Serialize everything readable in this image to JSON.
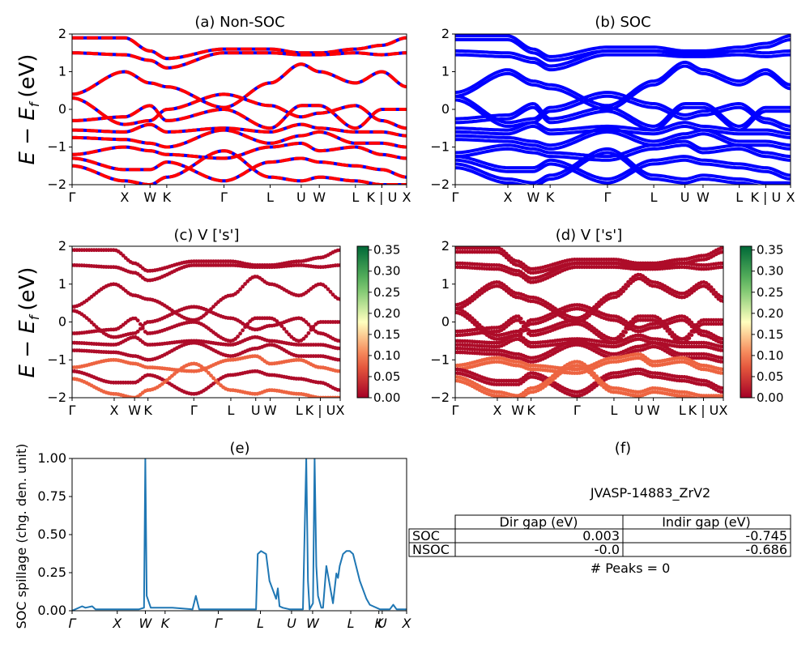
{
  "labels": {
    "energy_ylabel": "E − E",
    "energy_ylabel_sub": "f",
    "energy_ylabel_unit": "(eV)",
    "spillage_ylabel": "SOC spillage (chg. den. unit)"
  },
  "colors": {
    "nonsoc_a": "#ff0000",
    "nonsoc_b": "#0000ff",
    "soc": "#0000ff",
    "spillage": "#1f77b4",
    "colormap": "RdYlGn"
  },
  "chart_data": [
    {
      "panel": "a",
      "type": "line",
      "title": "(a) Non-SOC",
      "ylim": [
        -2,
        2
      ],
      "yticks": [
        "2",
        "1",
        "0",
        "−1",
        "−2"
      ],
      "xticks": [
        "Γ",
        "X",
        "W",
        "K",
        "Γ",
        "L",
        "U",
        "W",
        "L",
        "K | U",
        "X"
      ],
      "kpath_positions": [
        0,
        0.157,
        0.233,
        0.283,
        0.454,
        0.592,
        0.685,
        0.739,
        0.847,
        0.926,
        1.0
      ],
      "series": [
        {
          "values": [
            [
              0,
              1.9
            ],
            [
              0.157,
              1.9
            ],
            [
              0.233,
              1.55
            ],
            [
              0.283,
              1.35
            ],
            [
              0.454,
              1.6
            ],
            [
              0.592,
              1.6
            ],
            [
              0.685,
              1.5
            ],
            [
              0.739,
              1.5
            ],
            [
              0.847,
              1.6
            ],
            [
              0.926,
              1.7
            ],
            [
              1.0,
              1.9
            ]
          ]
        },
        {
          "values": [
            [
              0,
              1.5
            ],
            [
              0.157,
              1.45
            ],
            [
              0.233,
              1.3
            ],
            [
              0.283,
              1.1
            ],
            [
              0.454,
              1.5
            ],
            [
              0.592,
              1.5
            ],
            [
              0.685,
              1.45
            ],
            [
              0.739,
              1.45
            ],
            [
              0.847,
              1.5
            ],
            [
              0.926,
              1.45
            ],
            [
              1.0,
              1.5
            ]
          ]
        },
        {
          "values": [
            [
              0,
              0.4
            ],
            [
              0.157,
              1.0
            ],
            [
              0.233,
              0.7
            ],
            [
              0.283,
              0.6
            ],
            [
              0.454,
              0.05
            ],
            [
              0.592,
              0.7
            ],
            [
              0.685,
              1.2
            ],
            [
              0.739,
              1.0
            ],
            [
              0.847,
              0.7
            ],
            [
              0.926,
              1.0
            ],
            [
              1.0,
              0.6
            ]
          ]
        },
        {
          "values": [
            [
              0,
              0.3
            ],
            [
              0.157,
              -0.4
            ],
            [
              0.233,
              -0.3
            ],
            [
              0.283,
              0.0
            ],
            [
              0.454,
              0.4
            ],
            [
              0.592,
              0.1
            ],
            [
              0.685,
              -0.2
            ],
            [
              0.739,
              -0.1
            ],
            [
              0.847,
              0.1
            ],
            [
              0.926,
              -0.3
            ],
            [
              1.0,
              -0.5
            ]
          ]
        },
        {
          "values": [
            [
              0,
              -0.3
            ],
            [
              0.157,
              -0.2
            ],
            [
              0.233,
              0.1
            ],
            [
              0.283,
              -0.3
            ],
            [
              0.454,
              0.0
            ],
            [
              0.592,
              -0.5
            ],
            [
              0.685,
              0.1
            ],
            [
              0.739,
              0.1
            ],
            [
              0.847,
              -0.5
            ],
            [
              0.926,
              0.0
            ],
            [
              1.0,
              0.0
            ]
          ]
        },
        {
          "values": [
            [
              0,
              -0.55
            ],
            [
              0.157,
              -0.6
            ],
            [
              0.233,
              -0.4
            ],
            [
              0.283,
              -0.6
            ],
            [
              0.454,
              -0.5
            ],
            [
              0.592,
              -0.6
            ],
            [
              0.685,
              -0.4
            ],
            [
              0.739,
              -0.5
            ],
            [
              0.847,
              -0.6
            ],
            [
              0.926,
              -0.6
            ],
            [
              1.0,
              -0.7
            ]
          ]
        },
        {
          "values": [
            [
              0,
              -0.75
            ],
            [
              0.157,
              -0.8
            ],
            [
              0.233,
              -0.9
            ],
            [
              0.283,
              -1.0
            ],
            [
              0.454,
              -0.55
            ],
            [
              0.592,
              -0.9
            ],
            [
              0.685,
              -0.7
            ],
            [
              0.739,
              -0.6
            ],
            [
              0.847,
              -0.9
            ],
            [
              0.926,
              -0.9
            ],
            [
              1.0,
              -1.0
            ]
          ]
        },
        {
          "values": [
            [
              0,
              -1.2
            ],
            [
              0.157,
              -1.0
            ],
            [
              0.233,
              -1.1
            ],
            [
              0.283,
              -1.2
            ],
            [
              0.454,
              -1.3
            ],
            [
              0.592,
              -1.0
            ],
            [
              0.685,
              -0.9
            ],
            [
              0.739,
              -1.1
            ],
            [
              0.847,
              -1.0
            ],
            [
              0.926,
              -1.2
            ],
            [
              1.0,
              -1.3
            ]
          ]
        },
        {
          "values": [
            [
              0,
              -1.3
            ],
            [
              0.157,
              -1.6
            ],
            [
              0.233,
              -1.6
            ],
            [
              0.283,
              -1.4
            ],
            [
              0.454,
              -1.9
            ],
            [
              0.592,
              -1.4
            ],
            [
              0.685,
              -1.3
            ],
            [
              0.739,
              -1.4
            ],
            [
              0.847,
              -1.5
            ],
            [
              0.926,
              -1.6
            ],
            [
              1.0,
              -1.8
            ]
          ]
        },
        {
          "values": [
            [
              0,
              -1.5
            ],
            [
              0.157,
              -1.9
            ],
            [
              0.233,
              -2.0
            ],
            [
              0.283,
              -1.8
            ],
            [
              0.454,
              -1.1
            ],
            [
              0.592,
              -1.8
            ],
            [
              0.685,
              -1.9
            ],
            [
              0.739,
              -1.8
            ],
            [
              0.847,
              -1.9
            ],
            [
              0.926,
              -2.0
            ],
            [
              1.0,
              -2.0
            ]
          ]
        }
      ]
    },
    {
      "panel": "b",
      "type": "line",
      "title": "(b) SOC",
      "ylim": [
        -2,
        2
      ],
      "yticks": [
        "2",
        "1",
        "0",
        "−1",
        "−2"
      ],
      "xticks": [
        "Γ",
        "X",
        "W",
        "K",
        "Γ",
        "L",
        "U",
        "W",
        "L",
        "K | U",
        "X"
      ],
      "kpath_positions": [
        0,
        0.157,
        0.233,
        0.283,
        0.454,
        0.592,
        0.685,
        0.739,
        0.847,
        0.926,
        1.0
      ],
      "series": []
    },
    {
      "panel": "c",
      "type": "scatter",
      "title": "(c)  V ['s']",
      "ylim": [
        -2,
        2
      ],
      "yticks": [
        "2",
        "1",
        "0",
        "−1",
        "−2"
      ],
      "xticks": [
        "Γ",
        "X",
        "W",
        "K",
        "Γ",
        "L",
        "U",
        "W",
        "L",
        "K | U",
        "X"
      ],
      "kpath_positions": [
        0,
        0.157,
        0.233,
        0.283,
        0.454,
        0.592,
        0.685,
        0.739,
        0.847,
        0.926,
        1.0
      ],
      "colorbar": {
        "range": [
          0.0,
          0.35
        ],
        "ticks": [
          "0.35",
          "0.30",
          "0.25",
          "0.20",
          "0.15",
          "0.10",
          "0.05",
          "0.00"
        ]
      },
      "highlight_projection": 0.08,
      "base_projection": 0.01
    },
    {
      "panel": "d",
      "type": "scatter",
      "title": "(d) V ['s']",
      "ylim": [
        -2,
        2
      ],
      "yticks": [
        "2",
        "1",
        "0",
        "−1",
        "−2"
      ],
      "xticks": [
        "Γ",
        "X",
        "W",
        "K",
        "Γ",
        "L",
        "U",
        "W",
        "L",
        "K | U",
        "X"
      ],
      "kpath_positions": [
        0,
        0.157,
        0.233,
        0.283,
        0.454,
        0.592,
        0.685,
        0.739,
        0.847,
        0.926,
        1.0
      ],
      "colorbar": {
        "range": [
          0.0,
          0.35
        ],
        "ticks": [
          "0.35",
          "0.30",
          "0.25",
          "0.20",
          "0.15",
          "0.10",
          "0.05",
          "0.00"
        ]
      },
      "highlight_projection": 0.08,
      "base_projection": 0.01
    },
    {
      "panel": "e",
      "type": "line",
      "title": "(e)",
      "ylabel": "SOC spillage (chg. den. unit)",
      "ylim": [
        0,
        1.02
      ],
      "yticks": [
        "1.00",
        "0.75",
        "0.50",
        "0.25",
        "0.00"
      ],
      "xticks": [
        "Γ",
        "X",
        "W",
        "K",
        "Γ",
        "L",
        "U",
        "W",
        "L",
        "K",
        "U",
        "X"
      ],
      "kpath_positions": [
        0,
        0.135,
        0.219,
        0.278,
        0.437,
        0.563,
        0.656,
        0.719,
        0.833,
        0.917,
        0.927,
        1.0
      ],
      "x": [
        0,
        0.03,
        0.04,
        0.06,
        0.07,
        0.1,
        0.2,
        0.215,
        0.219,
        0.223,
        0.235,
        0.3,
        0.36,
        0.37,
        0.38,
        0.45,
        0.55,
        0.555,
        0.565,
        0.58,
        0.59,
        0.61,
        0.615,
        0.62,
        0.63,
        0.65,
        0.69,
        0.7,
        0.705,
        0.71,
        0.72,
        0.725,
        0.73,
        0.735,
        0.745,
        0.75,
        0.76,
        0.78,
        0.79,
        0.795,
        0.8,
        0.81,
        0.82,
        0.83,
        0.84,
        0.86,
        0.88,
        0.89,
        0.9,
        0.92,
        0.95,
        0.96,
        0.97,
        1.0
      ],
      "values": [
        0.0,
        0.03,
        0.02,
        0.03,
        0.01,
        0.01,
        0.01,
        0.02,
        1.02,
        0.1,
        0.02,
        0.02,
        0.01,
        0.1,
        0.01,
        0.01,
        0.01,
        0.38,
        0.4,
        0.38,
        0.2,
        0.08,
        0.15,
        0.03,
        0.02,
        0.01,
        0.01,
        1.02,
        0.2,
        0.01,
        0.05,
        1.02,
        0.3,
        0.1,
        0.02,
        0.02,
        0.3,
        0.05,
        0.25,
        0.22,
        0.3,
        0.38,
        0.4,
        0.4,
        0.38,
        0.2,
        0.08,
        0.04,
        0.03,
        0.01,
        0.01,
        0.04,
        0.01,
        0.01
      ]
    },
    {
      "panel": "f",
      "type": "table",
      "title": "(f)",
      "material": "JVASP-14883_ZrV2",
      "columns": [
        "Dir gap (eV)",
        "Indir gap (eV)"
      ],
      "rows": [
        {
          "label": "SOC",
          "dir_gap": "0.003",
          "indir_gap": "-0.745"
        },
        {
          "label": "NSOC",
          "dir_gap": "-0.0",
          "indir_gap": "-0.686"
        }
      ],
      "peaks_text": "# Peaks = 0"
    }
  ]
}
